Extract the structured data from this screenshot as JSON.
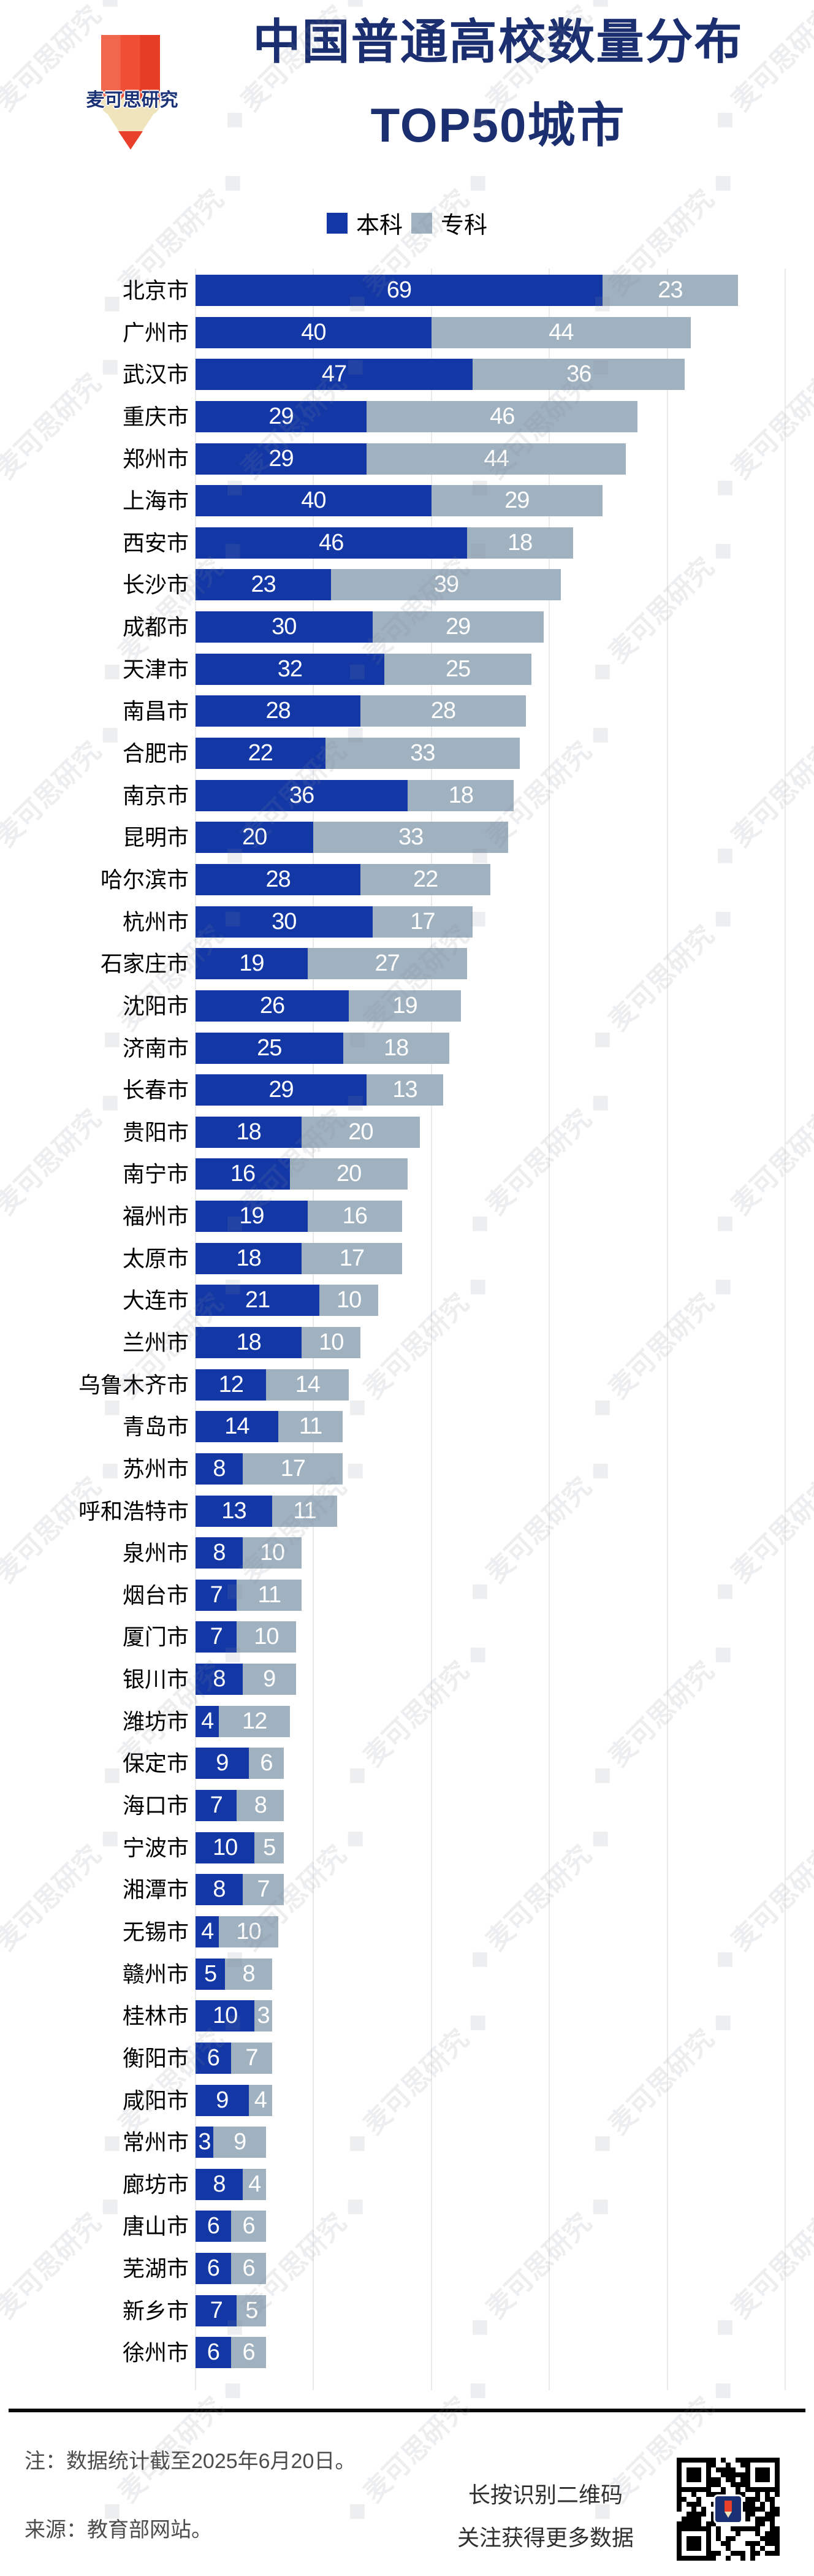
{
  "header": {
    "logo_text": "麦可思研究",
    "title_line1": "中国普通高校数量分布",
    "title_line2": "TOP50城市"
  },
  "legend": {
    "items": [
      {
        "label": "本科",
        "color": "#1338A6"
      },
      {
        "label": "专科",
        "color": "#A0B1BF"
      }
    ]
  },
  "chart_data": {
    "type": "bar",
    "orientation": "horizontal",
    "stacked": true,
    "title": "中国普通高校数量分布TOP50城市",
    "xlabel": "",
    "ylabel": "",
    "xlim": [
      0,
      100
    ],
    "gridline_interval": 20,
    "grid": true,
    "legend_position": "top",
    "value_labels": "inside-white",
    "sort": "total-descending",
    "categories": [
      "北京市",
      "广州市",
      "武汉市",
      "重庆市",
      "郑州市",
      "上海市",
      "西安市",
      "长沙市",
      "成都市",
      "天津市",
      "南昌市",
      "合肥市",
      "南京市",
      "昆明市",
      "哈尔滨市",
      "杭州市",
      "石家庄市",
      "沈阳市",
      "济南市",
      "长春市",
      "贵阳市",
      "南宁市",
      "福州市",
      "太原市",
      "大连市",
      "兰州市",
      "乌鲁木齐市",
      "青岛市",
      "苏州市",
      "呼和浩特市",
      "泉州市",
      "烟台市",
      "厦门市",
      "银川市",
      "潍坊市",
      "保定市",
      "海口市",
      "宁波市",
      "湘潭市",
      "无锡市",
      "赣州市",
      "桂林市",
      "衡阳市",
      "咸阳市",
      "常州市",
      "廊坊市",
      "唐山市",
      "芜湖市",
      "新乡市",
      "徐州市"
    ],
    "series": [
      {
        "name": "本科",
        "color": "#1338A6",
        "values": [
          69,
          40,
          47,
          29,
          29,
          40,
          46,
          23,
          30,
          32,
          28,
          22,
          36,
          20,
          28,
          30,
          19,
          26,
          25,
          29,
          18,
          16,
          19,
          18,
          21,
          18,
          12,
          14,
          8,
          13,
          8,
          7,
          7,
          8,
          4,
          9,
          7,
          10,
          8,
          4,
          5,
          10,
          6,
          9,
          3,
          8,
          6,
          6,
          7,
          6
        ]
      },
      {
        "name": "专科",
        "color": "#A0B1BF",
        "values": [
          23,
          44,
          36,
          46,
          44,
          29,
          18,
          39,
          29,
          25,
          28,
          33,
          18,
          33,
          22,
          17,
          27,
          19,
          18,
          13,
          20,
          20,
          16,
          17,
          10,
          10,
          14,
          11,
          17,
          11,
          10,
          11,
          10,
          9,
          12,
          6,
          8,
          5,
          7,
          10,
          8,
          3,
          7,
          4,
          9,
          4,
          6,
          6,
          5,
          6
        ]
      }
    ]
  },
  "footer": {
    "note": "注：数据统计截至2025年6月20日。",
    "source": "来源：教育部网站。",
    "qr_caption_line1": "长按识别二维码",
    "qr_caption_line2": "关注获得更多数据"
  },
  "watermark": {
    "text": "麦可思研究"
  }
}
